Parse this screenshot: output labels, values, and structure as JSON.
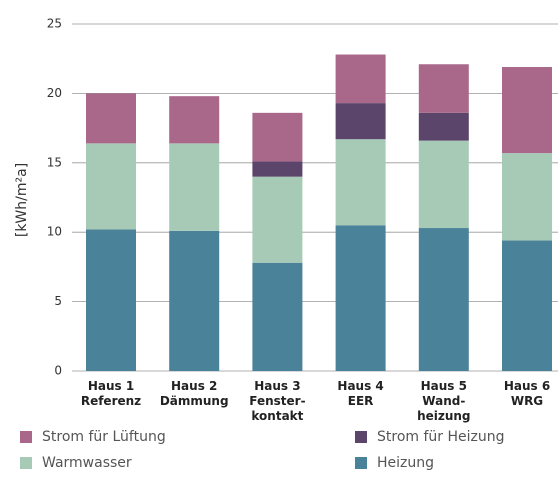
{
  "chart_data": {
    "type": "bar",
    "stacked": true,
    "ylabel": "[kWh/m²a]",
    "categories": [
      [
        "Haus 1",
        "Referenz"
      ],
      [
        "Haus 2",
        "Dämmung"
      ],
      [
        "Haus 3",
        "Fenster-",
        "kontakt"
      ],
      [
        "Haus 4",
        "EER"
      ],
      [
        "Haus 5",
        "Wand-",
        "heizung"
      ],
      [
        "Haus 6",
        "WRG"
      ]
    ],
    "series": [
      {
        "name": "Heizung",
        "color": "#4a8399",
        "values": [
          10.2,
          10.1,
          7.8,
          10.5,
          10.3,
          9.4
        ]
      },
      {
        "name": "Warmwasser",
        "color": "#a7cab7",
        "values": [
          6.2,
          6.3,
          6.2,
          6.2,
          6.3,
          6.3
        ]
      },
      {
        "name": "Strom für Heizung",
        "color": "#5c456b",
        "values": [
          0,
          0,
          1.1,
          2.6,
          2.0,
          0
        ]
      },
      {
        "name": "Strom für Lüftung",
        "color": "#a9678a",
        "values": [
          3.6,
          3.4,
          3.5,
          3.5,
          3.5,
          6.2
        ]
      }
    ],
    "ylim": [
      0,
      25
    ],
    "yticks": [
      0,
      5,
      10,
      15,
      20,
      25
    ],
    "grid": true
  }
}
